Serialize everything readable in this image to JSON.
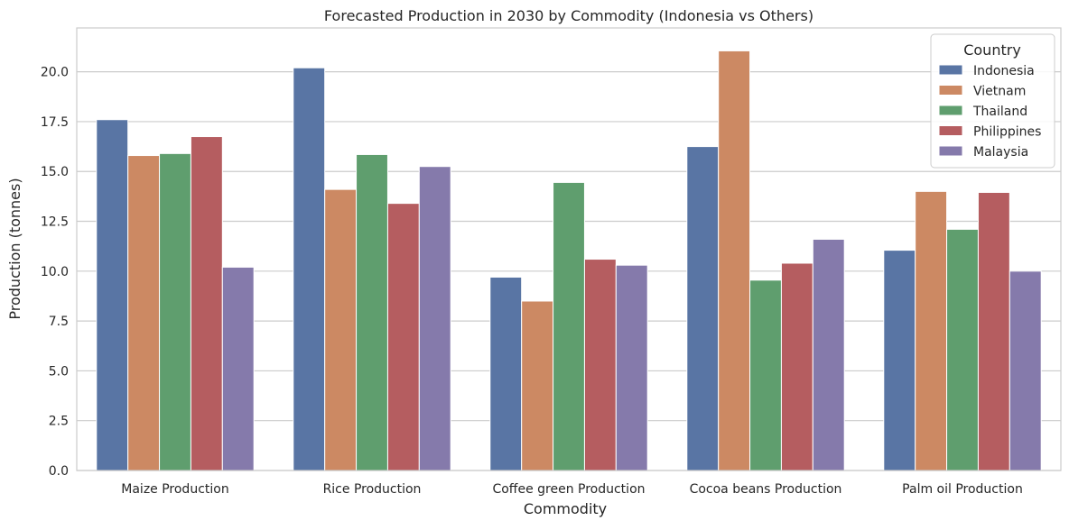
{
  "chart_data": {
    "type": "bar",
    "title": "Forecasted Production in 2030 by Commodity (Indonesia vs Others)",
    "xlabel": "Commodity",
    "ylabel": "Production (tonnes)",
    "ylim": [
      0,
      22.2
    ],
    "yticks": [
      "0.0",
      "2.5",
      "5.0",
      "7.5",
      "10.0",
      "12.5",
      "15.0",
      "17.5",
      "20.0"
    ],
    "grid": "horizontal",
    "legend_title": "Country",
    "legend_position": "top-right",
    "categories": [
      "Maize Production",
      "Rice Production",
      "Coffee green Production",
      "Cocoa beans Production",
      "Palm oil Production"
    ],
    "series": [
      {
        "name": "Indonesia",
        "color": "#5975a4",
        "values": [
          17.6,
          20.2,
          9.7,
          16.25,
          11.05
        ]
      },
      {
        "name": "Vietnam",
        "color": "#cc8963",
        "values": [
          15.8,
          14.1,
          8.5,
          21.05,
          14.0
        ]
      },
      {
        "name": "Thailand",
        "color": "#5f9e6e",
        "values": [
          15.9,
          15.85,
          14.45,
          9.55,
          12.1
        ]
      },
      {
        "name": "Philippines",
        "color": "#b55d60",
        "values": [
          16.75,
          13.4,
          10.6,
          10.4,
          13.95
        ]
      },
      {
        "name": "Malaysia",
        "color": "#857aab",
        "values": [
          10.2,
          15.25,
          10.3,
          11.6,
          10.0
        ]
      }
    ]
  }
}
